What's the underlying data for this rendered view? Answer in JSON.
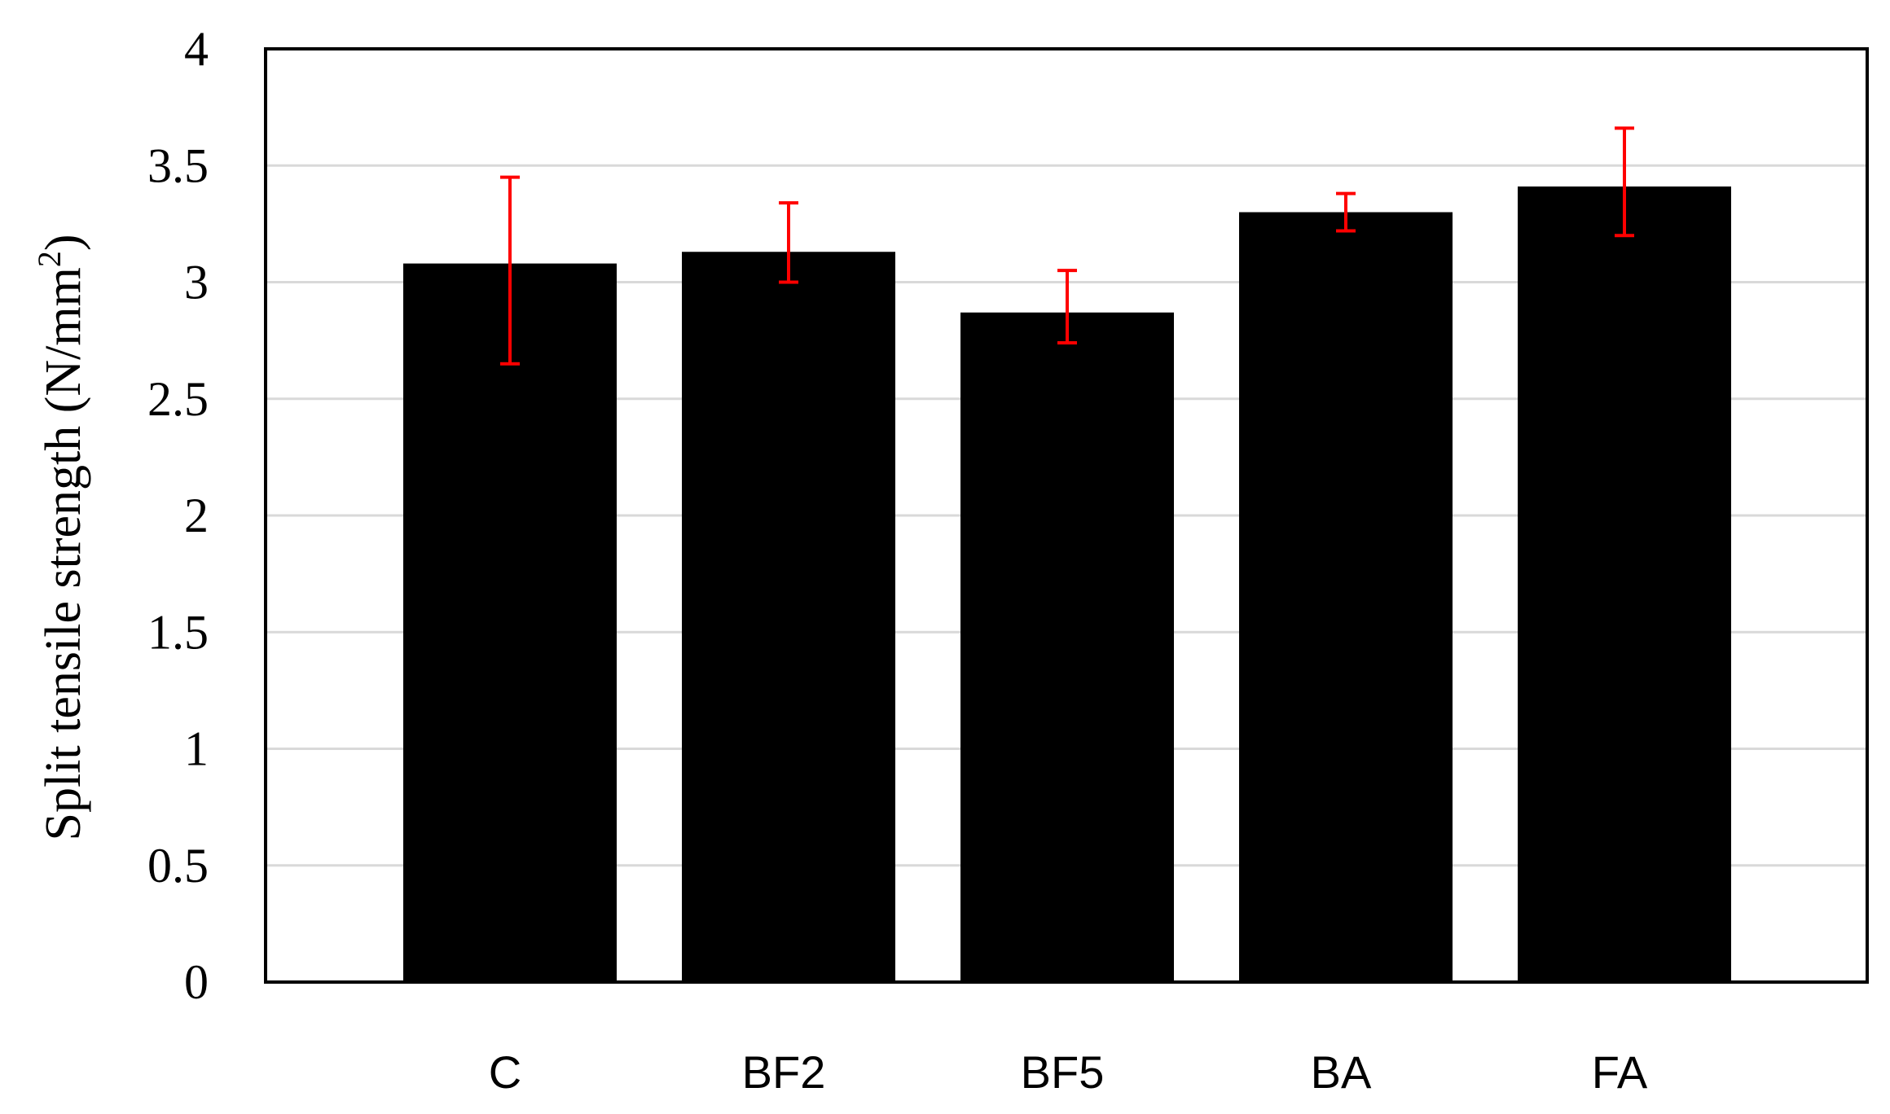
{
  "chart_data": {
    "type": "bar",
    "categories": [
      "C",
      "BF2",
      "BF5",
      "BA",
      "FA"
    ],
    "values": [
      3.08,
      3.13,
      2.87,
      3.3,
      3.41
    ],
    "error_low": [
      2.65,
      3.0,
      2.74,
      3.22,
      3.2
    ],
    "error_high": [
      3.45,
      3.34,
      3.05,
      3.38,
      3.66
    ],
    "ylabel_main": "Split tensile strength (N/mm",
    "ylabel_sup": "2",
    "ylabel_close": ")",
    "xlabel": "",
    "ylim": [
      0,
      4
    ],
    "yticks": [
      "0",
      "0.5",
      "1",
      "1.5",
      "2",
      "2.5",
      "3",
      "3.5",
      "4"
    ],
    "grid": true,
    "colors": {
      "bar": "#000000",
      "error": "#ff0000",
      "grid": "#d9d9d9",
      "frame": "#000000"
    }
  }
}
